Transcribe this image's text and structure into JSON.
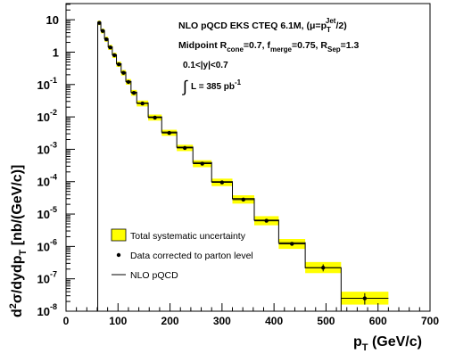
{
  "chart_data": {
    "type": "line",
    "subtype": "step-histogram-with-points-and-error-bands",
    "xlabel": {
      "main": "p",
      "sub": "T",
      "rest": " (GeV/c)"
    },
    "ylabel": {
      "pre": "d",
      "sup1": "2",
      "mid": "σ/dydp",
      "sub": "T",
      "rest": " [nb/(GeV/c)]"
    },
    "xlim": [
      0,
      700
    ],
    "ylim_log10": [
      -8,
      1.5
    ],
    "y_scale": "log",
    "xticks": [
      {
        "value": 0,
        "label": "0"
      },
      {
        "value": 100,
        "label": "100"
      },
      {
        "value": 200,
        "label": "200"
      },
      {
        "value": 300,
        "label": "300"
      },
      {
        "value": 400,
        "label": "400"
      },
      {
        "value": 500,
        "label": "500"
      },
      {
        "value": 600,
        "label": "600"
      },
      {
        "value": 700,
        "label": "700"
      }
    ],
    "yticks": [
      {
        "exp": 1,
        "base": "10",
        "sup": ""
      },
      {
        "exp": 0,
        "base": "1",
        "sup": ""
      },
      {
        "exp": -1,
        "base": "10",
        "sup": "-1"
      },
      {
        "exp": -2,
        "base": "10",
        "sup": "-2"
      },
      {
        "exp": -3,
        "base": "10",
        "sup": "-3"
      },
      {
        "exp": -4,
        "base": "10",
        "sup": "-4"
      },
      {
        "exp": -5,
        "base": "10",
        "sup": "-5"
      },
      {
        "exp": -6,
        "base": "10",
        "sup": "-6"
      },
      {
        "exp": -7,
        "base": "10",
        "sup": "-7"
      },
      {
        "exp": -8,
        "base": "10",
        "sup": "-8"
      }
    ],
    "annotations": {
      "line1": {
        "a": "NLO pQCD EKS CTEQ 6.1M, (μ=p",
        "sub": "T",
        "sup": "Jet",
        "b": "/2)"
      },
      "line2": {
        "a": "Midpoint R",
        "sub1": "cone",
        "b": "=0.7, f",
        "sub2": "merge",
        "c": "=0.75, R",
        "sub3": "Sep",
        "d": "=1.3"
      },
      "line3": "0.1<|y|<0.7",
      "line4": {
        "integral": "∫",
        "a": "L = 385 pb",
        "sup": "-1"
      }
    },
    "legend": {
      "position": "bottom-left",
      "entries": [
        {
          "symbol": "box",
          "label": "Total systematic uncertainty",
          "color": "#ffff00"
        },
        {
          "symbol": "dot",
          "label": "Data corrected to parton level"
        },
        {
          "symbol": "line",
          "label": "NLO pQCD"
        }
      ]
    },
    "bins": [
      {
        "lo": 61,
        "hi": 67,
        "x": 64,
        "data": 8.0,
        "sys_lo": 6.8,
        "sys_hi": 9.4,
        "nlo": 8.3
      },
      {
        "lo": 67,
        "hi": 74,
        "x": 70.5,
        "data": 4.5,
        "sys_lo": 3.8,
        "sys_hi": 5.3,
        "nlo": 4.7
      },
      {
        "lo": 74,
        "hi": 81,
        "x": 77.5,
        "data": 2.5,
        "sys_lo": 2.1,
        "sys_hi": 3.0,
        "nlo": 2.6
      },
      {
        "lo": 81,
        "hi": 89,
        "x": 85,
        "data": 1.4,
        "sys_lo": 1.17,
        "sys_hi": 1.68,
        "nlo": 1.45
      },
      {
        "lo": 89,
        "hi": 97,
        "x": 93,
        "data": 0.8,
        "sys_lo": 0.66,
        "sys_hi": 0.96,
        "nlo": 0.83
      },
      {
        "lo": 97,
        "hi": 106,
        "x": 101.5,
        "data": 0.42,
        "sys_lo": 0.35,
        "sys_hi": 0.51,
        "nlo": 0.44
      },
      {
        "lo": 106,
        "hi": 115,
        "x": 110.5,
        "data": 0.23,
        "sys_lo": 0.19,
        "sys_hi": 0.28,
        "nlo": 0.24
      },
      {
        "lo": 115,
        "hi": 125,
        "x": 120,
        "data": 0.12,
        "sys_lo": 0.099,
        "sys_hi": 0.147,
        "nlo": 0.125
      },
      {
        "lo": 125,
        "hi": 136,
        "x": 130.5,
        "data": 0.055,
        "sys_lo": 0.045,
        "sys_hi": 0.068,
        "nlo": 0.058
      },
      {
        "lo": 136,
        "hi": 158,
        "x": 147,
        "data": 0.026,
        "sys_lo": 0.021,
        "sys_hi": 0.032,
        "nlo": 0.027
      },
      {
        "lo": 158,
        "hi": 184,
        "x": 171,
        "data": 0.0095,
        "sys_lo": 0.0077,
        "sys_hi": 0.0118,
        "nlo": 0.01
      },
      {
        "lo": 184,
        "hi": 213,
        "x": 198.5,
        "data": 0.0032,
        "sys_lo": 0.0026,
        "sys_hi": 0.004,
        "nlo": 0.0034
      },
      {
        "lo": 213,
        "hi": 244,
        "x": 228.5,
        "data": 0.0011,
        "sys_lo": 0.00088,
        "sys_hi": 0.00138,
        "nlo": 0.00117
      },
      {
        "lo": 244,
        "hi": 280,
        "x": 262,
        "data": 0.00036,
        "sys_lo": 0.00028,
        "sys_hi": 0.00046,
        "nlo": 0.00039
      },
      {
        "lo": 280,
        "hi": 320,
        "x": 300,
        "data": 9.5e-05,
        "sys_lo": 7.3e-05,
        "sys_hi": 0.000124,
        "nlo": 0.0001
      },
      {
        "lo": 320,
        "hi": 362,
        "x": 341,
        "data": 2.8e-05,
        "sys_lo": 2.1e-05,
        "sys_hi": 3.8e-05,
        "nlo": 3e-05
      },
      {
        "lo": 362,
        "hi": 409,
        "x": 385.5,
        "data": 6.2e-06,
        "sys_lo": 4.5e-06,
        "sys_hi": 8.6e-06,
        "nlo": 6.5e-06
      },
      {
        "lo": 409,
        "hi": 460,
        "x": 434.5,
        "data": 1.2e-06,
        "sys_lo": 8.4e-07,
        "sys_hi": 1.7e-06,
        "nlo": 1.3e-06
      },
      {
        "lo": 460,
        "hi": 529,
        "x": 494.5,
        "data": 2.2e-07,
        "sys_lo": 1.5e-07,
        "sys_hi": 3.3e-07,
        "nlo": 2.2e-07,
        "stat_lo": 1.7e-07,
        "stat_hi": 2.8e-07
      },
      {
        "lo": 529,
        "hi": 620,
        "x": 574.5,
        "data": 2.5e-08,
        "sys_lo": 1.6e-08,
        "sys_hi": 4e-08,
        "nlo": 1e-08,
        "stat_lo": 1.6e-08,
        "stat_hi": 3.6e-08
      }
    ],
    "colors": {
      "band": "#ffff00",
      "axis": "#000000",
      "marker": "#000000"
    }
  }
}
